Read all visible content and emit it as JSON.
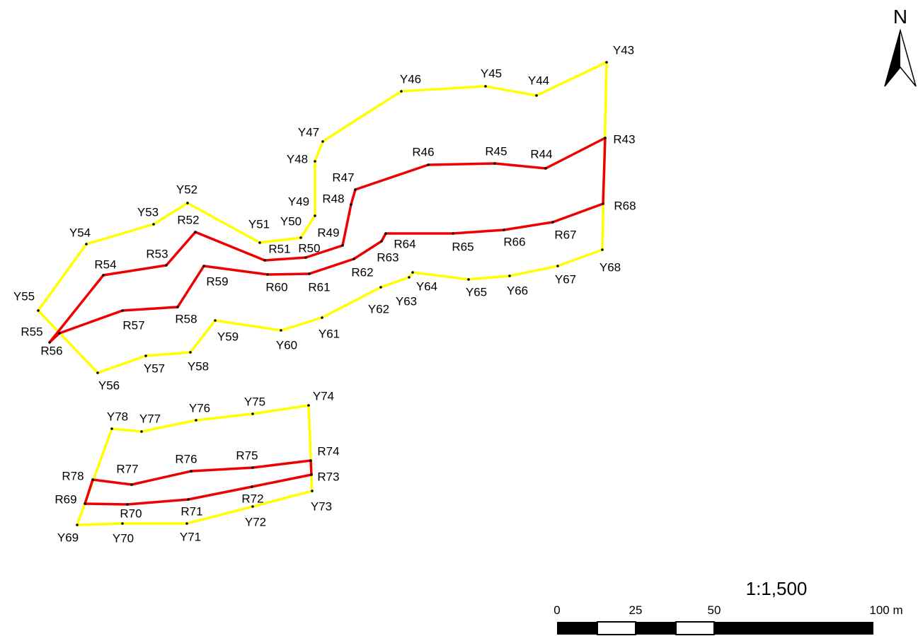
{
  "map": {
    "north_label": "N",
    "scale_label": "1:1,500",
    "scale_ticks": [
      "0",
      "25",
      "50",
      "100 m"
    ],
    "colors": {
      "yellow_line": "#ffff00",
      "red_line": "#ee0000",
      "vertex": "#000000",
      "bar_black": "#000000",
      "bar_white": "#ffffff"
    },
    "yellow_polygons": [
      [
        "Y43",
        "Y44",
        "Y45",
        "Y46",
        "Y47",
        "Y48",
        "Y49",
        "Y50",
        "Y51",
        "Y52",
        "Y53",
        "Y54",
        "Y55",
        "Y56",
        "Y57",
        "Y58",
        "Y59",
        "Y60",
        "Y61",
        "Y62",
        "Y63",
        "Y64",
        "Y65",
        "Y66",
        "Y67",
        "Y68"
      ],
      [
        "Y69",
        "Y70",
        "Y71",
        "Y72",
        "Y73",
        "Y74",
        "Y75",
        "Y76",
        "Y77",
        "Y78"
      ]
    ],
    "red_polygons": [
      [
        "R43",
        "R44",
        "R45",
        "R46",
        "R47",
        "R48",
        "R49",
        "R50",
        "R51",
        "R52",
        "R53",
        "R54",
        "R55",
        "R56",
        "R57",
        "R58",
        "R59",
        "R60",
        "R61",
        "R62",
        "R63",
        "R64",
        "R65",
        "R66",
        "R67",
        "R68"
      ],
      [
        "R69",
        "R70",
        "R71",
        "R72",
        "R73",
        "R74",
        "R75",
        "R76",
        "R77",
        "R78"
      ]
    ]
  }
}
